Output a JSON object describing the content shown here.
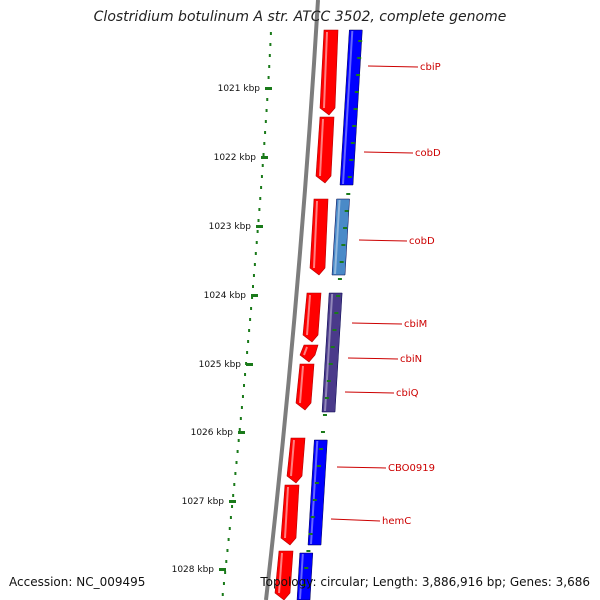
{
  "title": "Clostridium botulinum A str. ATCC 3502, complete genome",
  "footer": {
    "accession": "Accession: NC_009495",
    "summary": "Topology: circular; Length: 3,886,916 bp; Genes: 3,686"
  },
  "ruler": {
    "labels": [
      "1021 kbp",
      "1022 kbp",
      "1023 kbp",
      "1024 kbp",
      "1025 kbp",
      "1026 kbp",
      "1027 kbp",
      "1028 kbp"
    ]
  },
  "genes": [
    {
      "name": "cbiP"
    },
    {
      "name": "cobD"
    },
    {
      "name": "cobD"
    },
    {
      "name": "cbiM"
    },
    {
      "name": "cbiN"
    },
    {
      "name": "cbiQ"
    },
    {
      "name": "CBO0919"
    },
    {
      "name": "hemC"
    }
  ],
  "colors": {
    "cds": "#ff0000",
    "gene": "#0000ff",
    "gene_alt": "#4a8ac8",
    "gene_purple": "#4a3a8a",
    "backbone": "#808080",
    "ruler_dots": "#1a7a1a",
    "label": "#cc0000"
  }
}
